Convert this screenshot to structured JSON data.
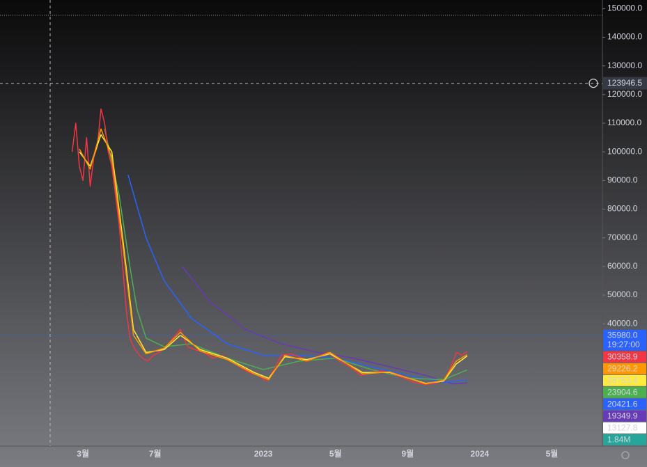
{
  "chart_data": {
    "type": "line",
    "xlim": [
      -2.6,
      30.8
    ],
    "xticks": [
      {
        "value": 2,
        "label": "3월"
      },
      {
        "value": 6,
        "label": "7월"
      },
      {
        "value": 12,
        "label": "2023"
      },
      {
        "value": 16,
        "label": "5월"
      },
      {
        "value": 20,
        "label": "9월"
      },
      {
        "value": 24,
        "label": "2024"
      },
      {
        "value": 28,
        "label": "5월"
      }
    ],
    "ylim": [
      -2700,
      153000
    ],
    "yticks": [
      {
        "value": 150000,
        "label": "150000.0"
      },
      {
        "value": 140000,
        "label": "140000.0"
      },
      {
        "value": 130000,
        "label": "130000.0"
      },
      {
        "value": 120000,
        "label": "120000.0"
      },
      {
        "value": 110000,
        "label": "110000.0"
      },
      {
        "value": 100000,
        "label": "100000.0"
      },
      {
        "value": 90000,
        "label": "90000.0"
      },
      {
        "value": 80000,
        "label": "80000.0"
      },
      {
        "value": 70000,
        "label": "70000.0"
      },
      {
        "value": 60000,
        "label": "60000.0"
      },
      {
        "value": 50000,
        "label": "50000.0"
      },
      {
        "value": 40000,
        "label": "40000.0"
      }
    ],
    "crosshair": {
      "value": 123946.5,
      "label": "123946.5"
    },
    "series": [
      {
        "color": "#673ab7",
        "x": [
          7.5,
          9,
          11,
          13,
          15,
          17,
          19,
          21,
          22.5,
          23.3
        ],
        "values": [
          60000,
          48000,
          38000,
          33000,
          30000,
          28000,
          25000,
          22000,
          19000,
          19349.9
        ]
      },
      {
        "color": "#2962ff",
        "x": [
          4.5,
          5.5,
          6.5,
          8,
          10,
          12,
          14,
          16,
          18,
          20,
          22,
          23.3
        ],
        "values": [
          92000,
          70000,
          55000,
          42000,
          33000,
          29000,
          29000,
          28000,
          25000,
          22000,
          19500,
          20421.6
        ]
      },
      {
        "color": "#4caf50",
        "x": [
          3.2,
          4.0,
          4.6,
          5.0,
          5.5,
          6.5,
          8,
          10,
          12,
          14,
          16,
          18,
          20,
          22,
          23.3
        ],
        "values": [
          108000,
          85000,
          60000,
          45000,
          35000,
          32000,
          33000,
          28000,
          24000,
          27000,
          28000,
          24000,
          21000,
          20500,
          23904.6
        ]
      },
      {
        "color": "#f23645",
        "x": [
          1.4,
          1.6,
          1.8,
          2.0,
          2.2,
          2.4,
          2.6,
          2.8,
          3.0,
          3.2,
          3.4,
          3.6,
          3.8,
          4.0,
          4.2,
          4.4,
          4.6,
          4.8,
          5.0,
          5.3,
          5.6,
          5.9,
          6.2,
          6.6,
          7.0,
          7.4,
          7.8,
          8.2,
          8.7,
          9.2,
          9.7,
          10.2,
          10.7,
          11.2,
          11.7,
          12.2,
          12.6,
          13.0,
          13.5,
          14.0,
          14.5,
          15.0,
          15.6,
          16.2,
          16.8,
          17.4,
          18.0,
          18.6,
          19.2,
          19.8,
          20.4,
          21.0,
          21.5,
          22.0,
          22.4,
          22.7,
          23.0,
          23.3
        ],
        "values": [
          100000,
          110000,
          95000,
          90000,
          105000,
          88000,
          98000,
          102000,
          115000,
          110000,
          100000,
          95000,
          85000,
          75000,
          60000,
          45000,
          35000,
          32000,
          30000,
          28000,
          27000,
          29000,
          30000,
          32000,
          35000,
          38000,
          32000,
          31000,
          30000,
          28000,
          29000,
          27000,
          25000,
          23000,
          22000,
          20000,
          24000,
          29000,
          29500,
          28500,
          27000,
          28500,
          30000,
          27000,
          25000,
          22000,
          23000,
          23500,
          22500,
          21000,
          19500,
          18800,
          19300,
          20000,
          25000,
          30000,
          29000,
          30358.9
        ]
      },
      {
        "color": "#ffeb3b",
        "x": [
          1.8,
          2.4,
          3.0,
          3.6,
          4.2,
          4.8,
          5.5,
          6.5,
          7.4,
          8.5,
          10,
          11.5,
          12.3,
          13.2,
          14.4,
          15.7,
          17.5,
          19,
          21,
          22,
          22.7,
          23.3
        ],
        "values": [
          100000,
          95000,
          106000,
          100000,
          70000,
          38000,
          30000,
          31000,
          36000,
          31000,
          28000,
          23000,
          21000,
          28500,
          27500,
          29500,
          23000,
          23000,
          19200,
          20000,
          26000,
          28753.4
        ]
      },
      {
        "color": "#ff9800",
        "x": [
          1.8,
          2.4,
          3.0,
          3.6,
          4.2,
          4.8,
          5.5,
          6.5,
          7.4,
          8.5,
          10,
          11.5,
          12.3,
          13.2,
          14.4,
          15.7,
          17.5,
          19,
          21,
          22,
          22.7,
          23.3
        ],
        "values": [
          101000,
          94000,
          108000,
          98000,
          68000,
          36000,
          29500,
          31500,
          37000,
          30500,
          27500,
          22500,
          20500,
          29000,
          27000,
          30000,
          22500,
          23200,
          19000,
          20300,
          27000,
          29226.2
        ]
      }
    ],
    "price_labels": [
      {
        "text": "35980.0",
        "sub": "19:27:00",
        "value": 35980,
        "color": "#2962ff",
        "text_color": "#ffffff"
      },
      {
        "text": "30358.9",
        "value": 30358.9,
        "color": "#f23645",
        "text_color": "#ffffff"
      },
      {
        "text": "29226.2",
        "value": 29226.2,
        "color": "#ff9800",
        "text_color": "#000000"
      },
      {
        "text": "28753.4",
        "value": 28753.4,
        "color": "#ffeb3b",
        "text_color": "#000000"
      },
      {
        "text": "23904.6",
        "value": 23904.6,
        "color": "#4caf50",
        "text_color": "#ffffff"
      },
      {
        "text": "20421.6",
        "value": 20421.6,
        "color": "#2962ff",
        "text_color": "#ffffff"
      },
      {
        "text": "19349.9",
        "value": 19349.9,
        "color": "#673ab7",
        "text_color": "#ffffff"
      },
      {
        "text": "13127.8",
        "value": 13127.8,
        "color": "#ffffff",
        "text_color": "#000000"
      },
      {
        "text": "1.84M",
        "color": "#26a69a",
        "text_color": "#ffffff"
      }
    ]
  }
}
